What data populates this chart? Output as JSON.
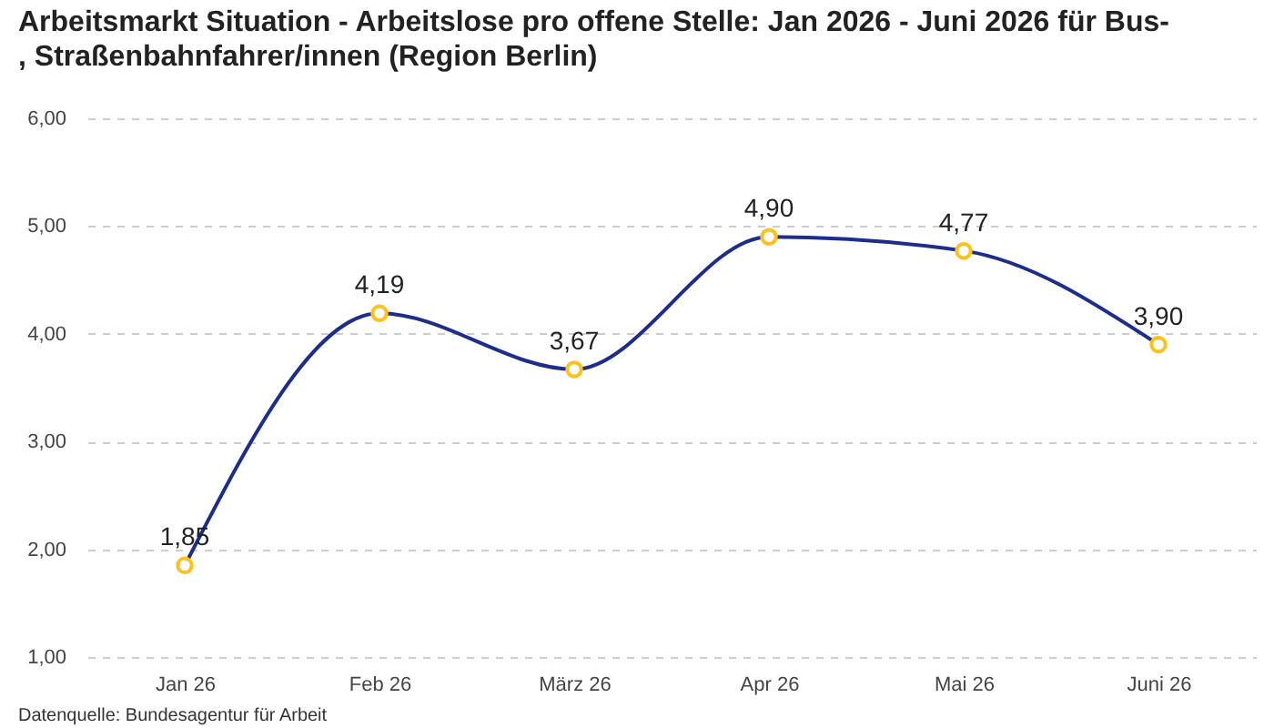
{
  "chart_data": {
    "type": "line",
    "title": "Arbeitsmarkt Situation - Arbeitslose pro offene Stelle: Jan 2026 - Juni 2026 für Bus-, Straßenbahnfahrer/innen (Region Berlin)",
    "categories": [
      "Jan 26",
      "Feb 26",
      "März 26",
      "Apr 26",
      "Mai 26",
      "Juni 26"
    ],
    "series": [
      {
        "color": "#1c2d8c",
        "colors": [
          "#fcc21b",
          "#fcc21b",
          "#fcc21b",
          "#fcc21b",
          "#fcc21b",
          "#fcc21b"
        ],
        "values": [
          1.85,
          4.19,
          3.67,
          4.9,
          4.77,
          3.9
        ],
        "value_labels": [
          "1,85",
          "4,19",
          "3,67",
          "4,90",
          "4,77",
          "3,90"
        ]
      }
    ],
    "ylim": [
      1,
      6
    ],
    "yticks": [
      {
        "value": 1,
        "label": "1,00"
      },
      {
        "value": 2,
        "label": "2,00"
      },
      {
        "value": 3,
        "label": "3,00"
      },
      {
        "value": 4,
        "label": "4,00"
      },
      {
        "value": 5,
        "label": "5,00"
      },
      {
        "value": 6,
        "label": "6,00"
      }
    ],
    "grid": "y",
    "marker": "circle",
    "line_style": "solid",
    "legend": false,
    "annotations": [
      "Datenquelle: Bundesagentur für Arbeit"
    ]
  }
}
